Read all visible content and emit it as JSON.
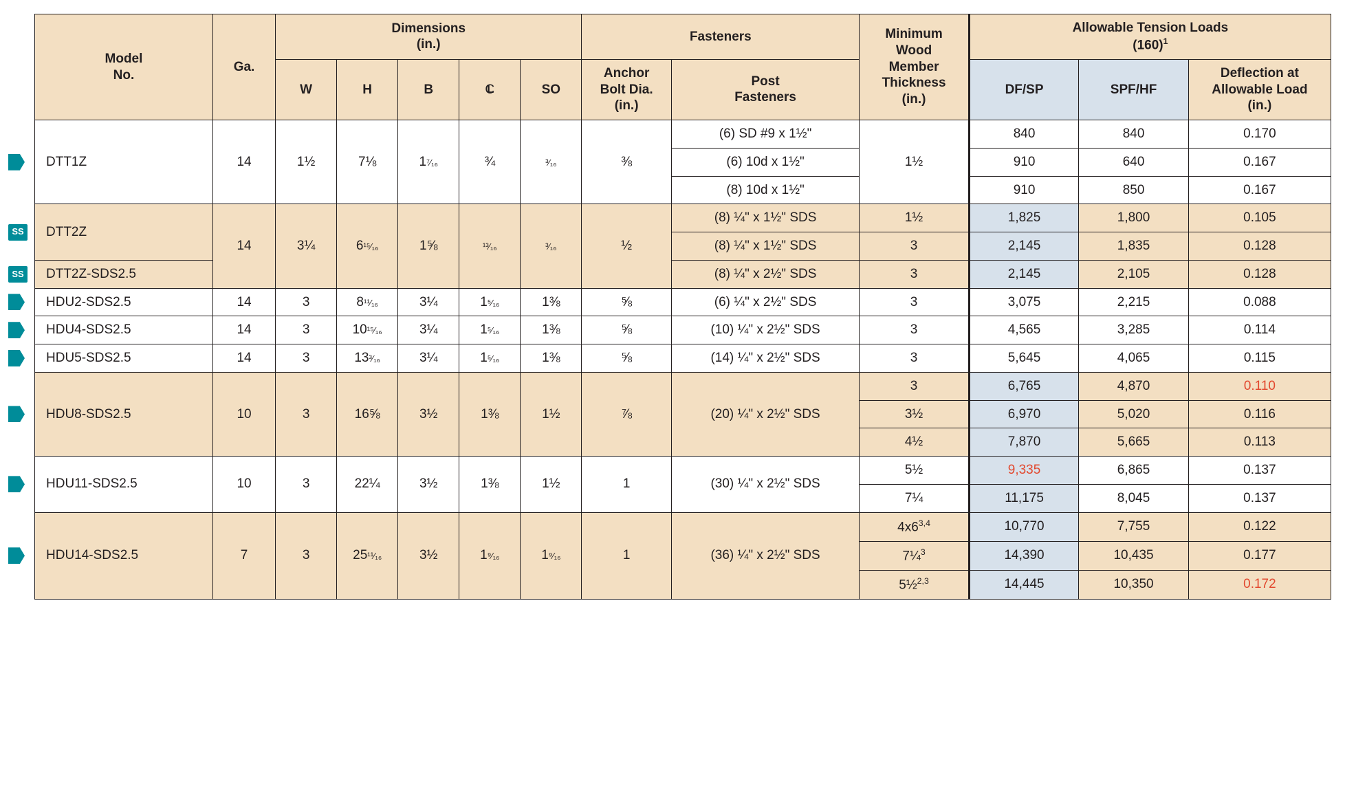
{
  "colors": {
    "header_bg": "#f3dfc2",
    "shade_tan": "#f3dfc2",
    "shade_blue": "#d7e1eb",
    "red_text": "#e2492f",
    "marker_teal": "#008c99",
    "border": "#231f20",
    "text": "#231f20"
  },
  "headers": {
    "model": "Model\nNo.",
    "ga": "Ga.",
    "dimensions": "Dimensions\n(in.)",
    "dim_cols": {
      "W": "W",
      "H": "H",
      "B": "B",
      "CL": "C̸L",
      "SO": "SO"
    },
    "fasteners": "Fasteners",
    "anchor": "Anchor\nBolt Dia.\n(in.)",
    "post": "Post\nFasteners",
    "min_wood": "Minimum\nWood\nMember\nThickness\n(in.)",
    "loads": "Allowable Tension Loads\n(160)",
    "loads_sup": "1",
    "dfsp": "DF/SP",
    "spfhf": "SPF/HF",
    "defl": "Deflection at\nAllowable Load\n(in.)"
  },
  "rows": [
    {
      "model": "DTT1Z",
      "marker": "arrow",
      "ga": "14",
      "W": "1½",
      "H": "7⅛",
      "B": "1⁷⁄₁₆",
      "CL": "¾",
      "SO": "³⁄₁₆",
      "bolt": "⅜",
      "variants": [
        {
          "post": "(6) SD #9 x 1½\"",
          "min": "1½",
          "dfsp": "840",
          "spfhf": "840",
          "defl": "0.170"
        },
        {
          "post": "(6) 10d x 1½\"",
          "dfsp": "910",
          "spfhf": "640",
          "defl": "0.167"
        },
        {
          "post": "(8) 10d x 1½\"",
          "dfsp": "910",
          "spfhf": "850",
          "defl": "0.167"
        }
      ]
    },
    {
      "group_shade": true,
      "models": [
        {
          "model": "DTT2Z",
          "marker": "ss",
          "rowspan": 2
        },
        {
          "model": "DTT2Z-SDS2.5",
          "marker": "ss",
          "rowspan": 1
        }
      ],
      "ga": "14",
      "W": "3¼",
      "H": "6¹⁵⁄₁₆",
      "B": "1⅝",
      "CL": "¹³⁄₁₆",
      "SO": "³⁄₁₆",
      "bolt": "½",
      "variants": [
        {
          "post": "(8) ¼\" x 1½\" SDS",
          "min": "1½",
          "dfsp": "1,825",
          "spfhf": "1,800",
          "defl": "0.105",
          "dfsp_blue": true
        },
        {
          "post": "(8) ¼\" x 1½\" SDS",
          "min": "3",
          "dfsp": "2,145",
          "spfhf": "1,835",
          "defl": "0.128",
          "dfsp_blue": true
        },
        {
          "post": "(8) ¼\" x 2½\" SDS",
          "min": "3",
          "dfsp": "2,145",
          "spfhf": "2,105",
          "defl": "0.128",
          "dfsp_blue": true
        }
      ]
    },
    {
      "model": "HDU2-SDS2.5",
      "marker": "arrow",
      "ga": "14",
      "W": "3",
      "H": "8¹¹⁄₁₆",
      "B": "3¼",
      "CL": "1⁵⁄₁₆",
      "SO": "1⅜",
      "bolt": "⅝",
      "variants": [
        {
          "post": "(6) ¼\" x 2½\" SDS",
          "min": "3",
          "dfsp": "3,075",
          "spfhf": "2,215",
          "defl": "0.088"
        }
      ]
    },
    {
      "model": "HDU4-SDS2.5",
      "marker": "arrow",
      "ga": "14",
      "W": "3",
      "H": "10¹⁵⁄₁₆",
      "B": "3¼",
      "CL": "1⁵⁄₁₆",
      "SO": "1⅜",
      "bolt": "⅝",
      "variants": [
        {
          "post": "(10) ¼\" x 2½\" SDS",
          "min": "3",
          "dfsp": "4,565",
          "spfhf": "3,285",
          "defl": "0.114"
        }
      ]
    },
    {
      "model": "HDU5-SDS2.5",
      "marker": "arrow",
      "ga": "14",
      "W": "3",
      "H": "13³⁄₁₆",
      "B": "3¼",
      "CL": "1⁵⁄₁₆",
      "SO": "1⅜",
      "bolt": "⅝",
      "variants": [
        {
          "post": "(14) ¼\" x 2½\" SDS",
          "min": "3",
          "dfsp": "5,645",
          "spfhf": "4,065",
          "defl": "0.115"
        }
      ]
    },
    {
      "model": "HDU8-SDS2.5",
      "marker": "arrow",
      "group_shade": true,
      "ga": "10",
      "W": "3",
      "H": "16⅝",
      "B": "3½",
      "CL": "1⅜",
      "SO": "1½",
      "bolt": "⅞",
      "post_shared": "(20) ¼\" x 2½\" SDS",
      "variants": [
        {
          "min": "3",
          "dfsp": "6,765",
          "spfhf": "4,870",
          "defl": "0.110",
          "dfsp_blue": true,
          "defl_red": true
        },
        {
          "min": "3½",
          "dfsp": "6,970",
          "spfhf": "5,020",
          "defl": "0.116",
          "dfsp_blue": true
        },
        {
          "min": "4½",
          "dfsp": "7,870",
          "spfhf": "5,665",
          "defl": "0.113",
          "dfsp_blue": true
        }
      ]
    },
    {
      "model": "HDU11-SDS2.5",
      "marker": "arrow",
      "ga": "10",
      "W": "3",
      "H": "22¼",
      "B": "3½",
      "CL": "1⅜",
      "SO": "1½",
      "bolt": "1",
      "post_shared": "(30) ¼\" x 2½\" SDS",
      "variants": [
        {
          "min": "5½",
          "dfsp": "9,335",
          "spfhf": "6,865",
          "defl": "0.137",
          "dfsp_blue": true,
          "dfsp_red": true
        },
        {
          "min": "7¼",
          "dfsp": "11,175",
          "spfhf": "8,045",
          "defl": "0.137",
          "dfsp_blue": true
        }
      ]
    },
    {
      "model": "HDU14-SDS2.5",
      "marker": "arrow",
      "group_shade": true,
      "ga": "7",
      "W": "3",
      "H": "25¹¹⁄₁₆",
      "B": "3½",
      "CL": "1⁹⁄₁₆",
      "SO": "1⁹⁄₁₆",
      "bolt": "1",
      "post_shared": "(36) ¼\" x 2½\" SDS",
      "variants": [
        {
          "min": "4x6",
          "min_sup": "3,4",
          "dfsp": "10,770",
          "spfhf": "7,755",
          "defl": "0.122",
          "dfsp_blue": true
        },
        {
          "min": "7¼",
          "min_sup": "3",
          "dfsp": "14,390",
          "spfhf": "10,435",
          "defl": "0.177",
          "dfsp_blue": true
        },
        {
          "min": "5½",
          "min_sup": "2,3",
          "dfsp": "14,445",
          "spfhf": "10,350",
          "defl": "0.172",
          "dfsp_blue": true,
          "defl_red": true
        }
      ]
    }
  ]
}
